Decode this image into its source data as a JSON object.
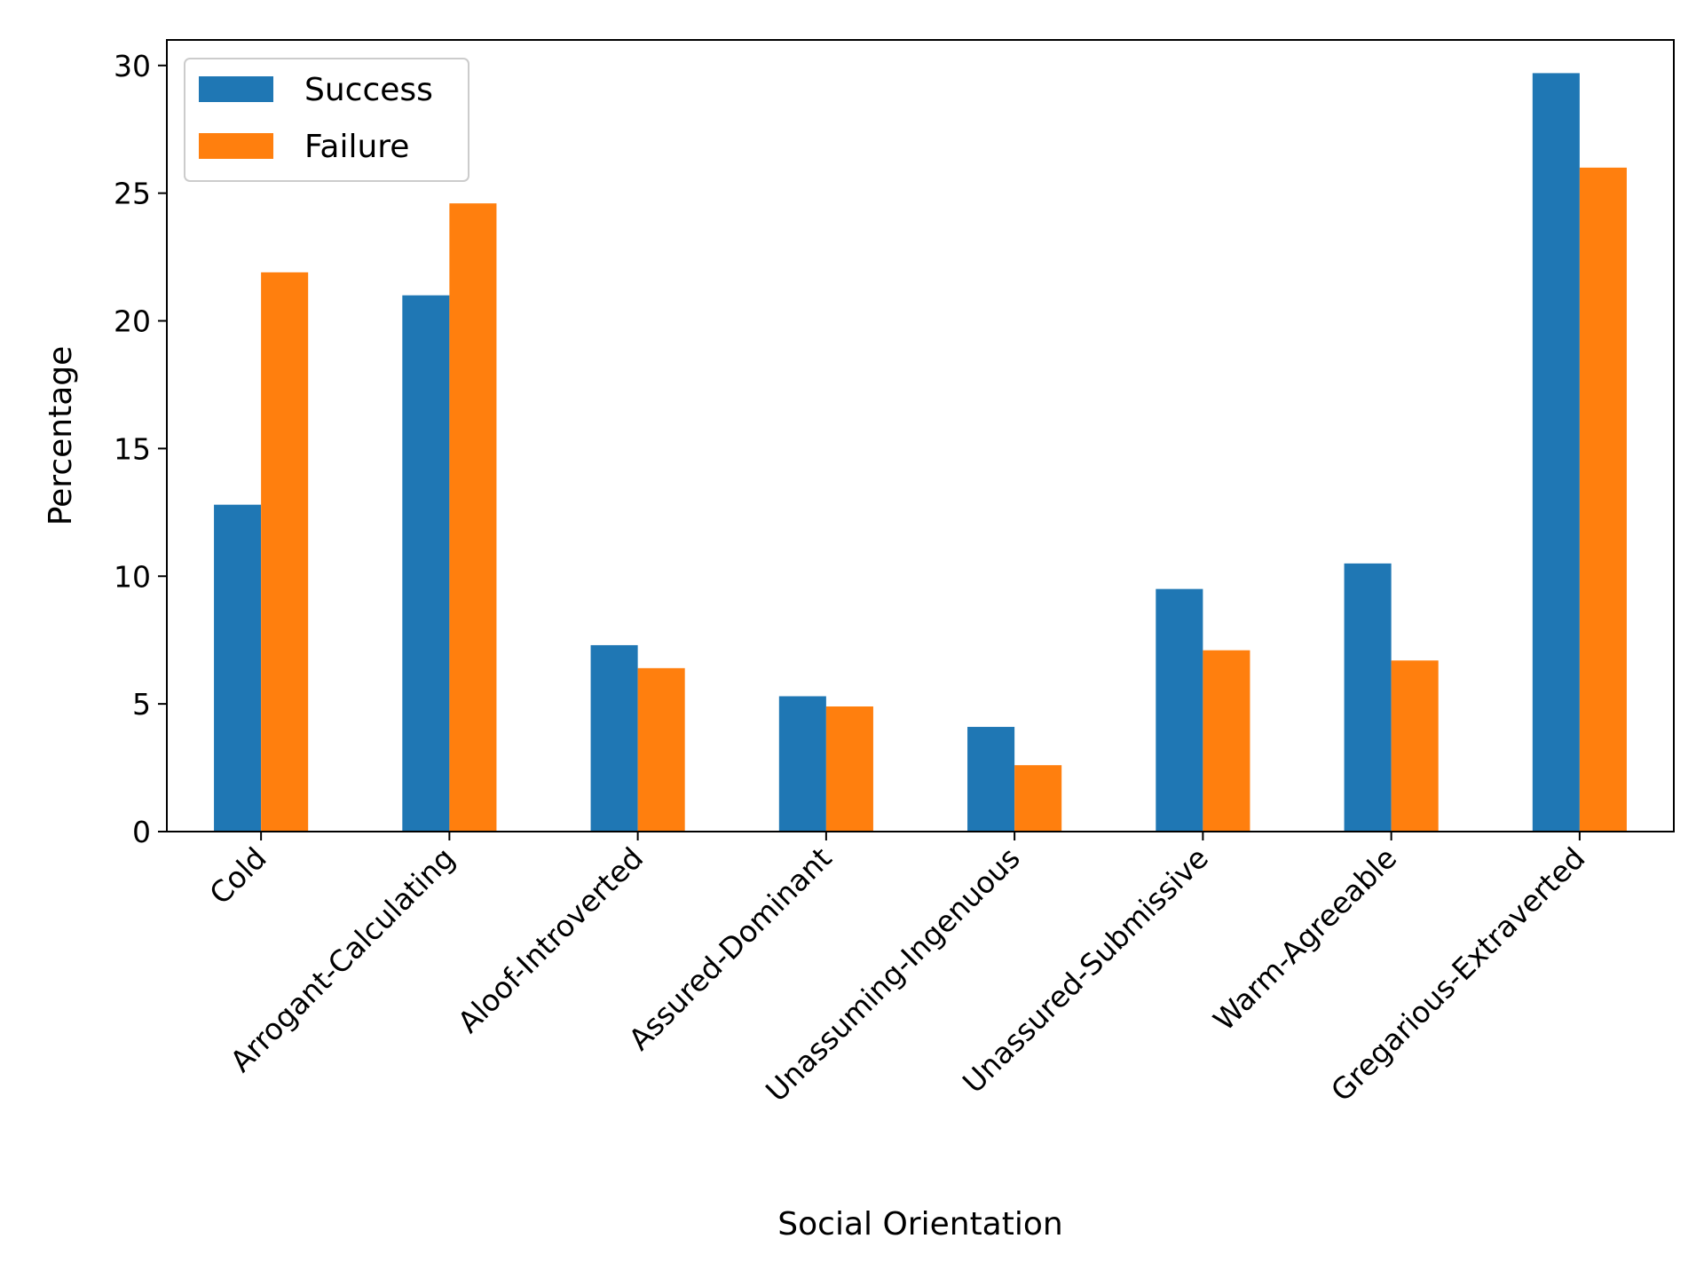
{
  "chart_data": {
    "type": "bar",
    "title": "",
    "xlabel": "Social Orientation",
    "ylabel": "Percentage",
    "ylim": [
      0,
      31
    ],
    "yticks": [
      0,
      5,
      10,
      15,
      20,
      25,
      30
    ],
    "grid": false,
    "legend_position": "top-left",
    "categories": [
      "Cold",
      "Arrogant-Calculating",
      "Aloof-Introverted",
      "Assured-Dominant",
      "Unassuming-Ingenuous",
      "Unassured-Submissive",
      "Warm-Agreeable",
      "Gregarious-Extraverted"
    ],
    "series": [
      {
        "name": "Success",
        "color": "#1f77b4",
        "values": [
          12.8,
          21.0,
          7.3,
          5.3,
          4.1,
          9.5,
          10.5,
          29.7
        ]
      },
      {
        "name": "Failure",
        "color": "#ff7f0e",
        "values": [
          21.9,
          24.6,
          6.4,
          4.9,
          2.6,
          7.1,
          6.7,
          26.0
        ]
      }
    ]
  }
}
